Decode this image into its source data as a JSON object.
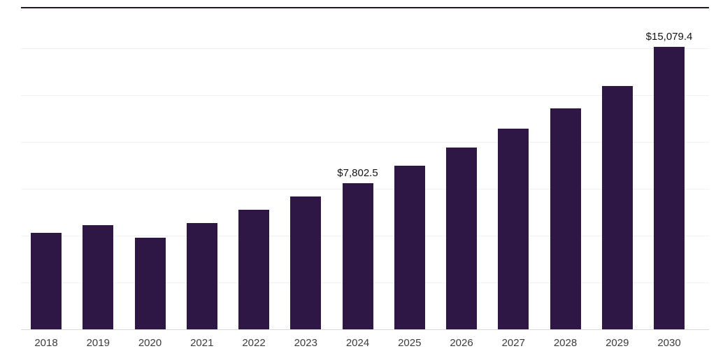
{
  "chart_data": {
    "type": "bar",
    "title": "",
    "xlabel": "",
    "ylabel": "",
    "categories": [
      "2018",
      "2019",
      "2020",
      "2021",
      "2022",
      "2023",
      "2024",
      "2025",
      "2026",
      "2027",
      "2028",
      "2029",
      "2030"
    ],
    "values": [
      5150,
      5560,
      4890,
      5670,
      6380,
      7090,
      7802.5,
      8730,
      9700,
      10700,
      11790,
      12980,
      15079.4
    ],
    "ylim": [
      0,
      17250
    ],
    "grid_interval": 2500,
    "grid_max": 15000,
    "legend": "none",
    "grid": "horizontal-faint",
    "annotations": [
      {
        "category": "2024",
        "label": "$7,802.5"
      },
      {
        "category": "2030",
        "label": "$15,079.4"
      }
    ],
    "colors": {
      "bar": "#2e1745",
      "gridline": "#f0eff1",
      "baseline": "#d9d9d9",
      "top_rule": "#211a26",
      "data_label": "#141414",
      "axis_label": "#3c3c3c",
      "background": "#ffffff"
    }
  }
}
